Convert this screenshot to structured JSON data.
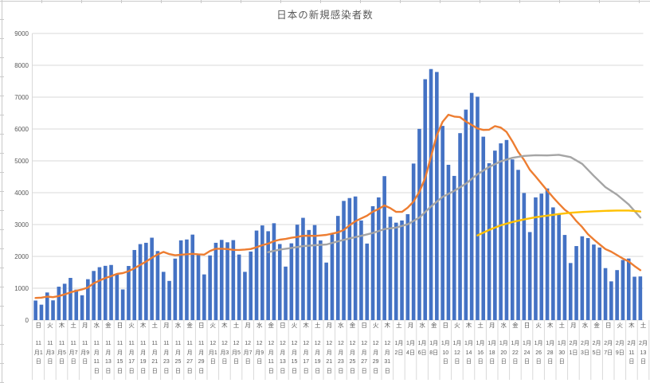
{
  "chart_data": {
    "type": "combo_bar_line",
    "title": "日本の新規感染者数",
    "xlabel": "",
    "ylabel": "",
    "ylim": [
      0,
      9000
    ],
    "y_ticks": [
      0,
      1000,
      2000,
      3000,
      4000,
      5000,
      6000,
      7000,
      8000,
      9000
    ],
    "grid": "horizontal",
    "legend": "none",
    "colors": {
      "bars": "#4472C4",
      "line_orange": "#ED7D31",
      "line_gray": "#A5A5A5",
      "line_yellow": "#FFC000",
      "gridline": "#D9D9D9",
      "axis_text": "#595959"
    },
    "x_labels": [
      {
        "dow": "日",
        "date": "11月1日"
      },
      {
        "dow": "火",
        "date": "11月3日"
      },
      {
        "dow": "木",
        "date": "11月5日"
      },
      {
        "dow": "土",
        "date": "11月7日"
      },
      {
        "dow": "月",
        "date": "11月9日"
      },
      {
        "dow": "水",
        "date": "11月11日"
      },
      {
        "dow": "金",
        "date": "11月13日"
      },
      {
        "dow": "日",
        "date": "11月15日"
      },
      {
        "dow": "火",
        "date": "11月17日"
      },
      {
        "dow": "木",
        "date": "11月19日"
      },
      {
        "dow": "土",
        "date": "11月21日"
      },
      {
        "dow": "月",
        "date": "11月23日"
      },
      {
        "dow": "水",
        "date": "11月25日"
      },
      {
        "dow": "金",
        "date": "11月27日"
      },
      {
        "dow": "日",
        "date": "11月29日"
      },
      {
        "dow": "火",
        "date": "12月1日"
      },
      {
        "dow": "木",
        "date": "12月3日"
      },
      {
        "dow": "土",
        "date": "12月5日"
      },
      {
        "dow": "月",
        "date": "12月7日"
      },
      {
        "dow": "水",
        "date": "12月9日"
      },
      {
        "dow": "金",
        "date": "12月11日"
      },
      {
        "dow": "日",
        "date": "12月13日"
      },
      {
        "dow": "火",
        "date": "12月15日"
      },
      {
        "dow": "木",
        "date": "12月17日"
      },
      {
        "dow": "土",
        "date": "12月19日"
      },
      {
        "dow": "月",
        "date": "12月21日"
      },
      {
        "dow": "水",
        "date": "12月23日"
      },
      {
        "dow": "金",
        "date": "12月25日"
      },
      {
        "dow": "日",
        "date": "12月27日"
      },
      {
        "dow": "火",
        "date": "12月29日"
      },
      {
        "dow": "木",
        "date": "12月31日"
      },
      {
        "dow": "土",
        "date": "1月2日"
      },
      {
        "dow": "月",
        "date": "1月4日"
      },
      {
        "dow": "水",
        "date": "1月6日"
      },
      {
        "dow": "金",
        "date": "1月8日"
      },
      {
        "dow": "日",
        "date": "1月10日"
      },
      {
        "dow": "火",
        "date": "1月12日"
      },
      {
        "dow": "木",
        "date": "1月14日"
      },
      {
        "dow": "土",
        "date": "1月16日"
      },
      {
        "dow": "月",
        "date": "1月18日"
      },
      {
        "dow": "水",
        "date": "1月20日"
      },
      {
        "dow": "金",
        "date": "1月22日"
      },
      {
        "dow": "日",
        "date": "1月24日"
      },
      {
        "dow": "火",
        "date": "1月26日"
      },
      {
        "dow": "木",
        "date": "1月28日"
      },
      {
        "dow": "土",
        "date": "1月30日"
      },
      {
        "dow": "月",
        "date": "2月1日"
      },
      {
        "dow": "水",
        "date": "2月3日"
      },
      {
        "dow": "金",
        "date": "2月5日"
      },
      {
        "dow": "日",
        "date": "2月7日"
      },
      {
        "dow": "火",
        "date": "2月9日"
      },
      {
        "dow": "木",
        "date": "2月11日"
      },
      {
        "dow": "土",
        "date": "2月13日"
      }
    ],
    "bars": {
      "first_date": "11月1日",
      "last_date": "2月13日",
      "values": [
        614,
        484,
        867,
        620,
        1049,
        1141,
        1325,
        957,
        780,
        1284,
        1543,
        1661,
        1704,
        1731,
        1440,
        962,
        1699,
        2201,
        2386,
        2427,
        2587,
        2168,
        1515,
        1230,
        1931,
        2504,
        2531,
        2684,
        2066,
        1434,
        2030,
        2427,
        2518,
        2442,
        2511,
        2058,
        1515,
        2152,
        2811,
        2972,
        2790,
        3041,
        2388,
        1680,
        2410,
        2995,
        3211,
        2829,
        2983,
        2501,
        1806,
        2688,
        3271,
        3742,
        3832,
        3881,
        3127,
        2403,
        3576,
        3852,
        4520,
        3246,
        3059,
        3127,
        3325,
        4915,
        6004,
        7563,
        7882,
        7790,
        6097,
        4876,
        4527,
        5870,
        6609,
        7133,
        7014,
        5759,
        4925,
        5321,
        5549,
        5655,
        5045,
        4717,
        3990,
        2764,
        3853,
        3971,
        4133,
        3539,
        3344,
        2673,
        1792,
        2324,
        2631,
        2576,
        2372,
        2279,
        1632,
        1216,
        1570,
        1887,
        1933,
        1362,
        1371
      ]
    },
    "lines": [
      {
        "id": "line-orange-7day-average",
        "color": "#ED7D31",
        "start_day": 1,
        "values": [
          695,
          705,
          737,
          721,
          755,
          807,
          871,
          920,
          963,
          1022,
          1154,
          1242,
          1322,
          1380,
          1449,
          1475,
          1534,
          1628,
          1732,
          1835,
          1957,
          2061,
          2140,
          2073,
          2035,
          2052,
          2067,
          2080,
          2066,
          2054,
          2169,
          2239,
          2241,
          2229,
          2204,
          2203,
          2214,
          2232,
          2287,
          2352,
          2401,
          2477,
          2524,
          2548,
          2585,
          2611,
          2645,
          2651,
          2642,
          2658,
          2676,
          2716,
          2756,
          2831,
          2975,
          3103,
          3192,
          3278,
          3405,
          3488,
          3599,
          3515,
          3398,
          3398,
          3529,
          3721,
          4028,
          4463,
          5125,
          5801,
          6225,
          6447,
          6391,
          6372,
          6236,
          6129,
          6018,
          5970,
          5977,
          6090,
          6044,
          5908,
          5610,
          5282,
          5029,
          4720,
          4510,
          4285,
          4068,
          3852,
          3656,
          3468,
          3329,
          3111,
          2919,
          2697,
          2530,
          2378,
          2229,
          2147,
          2039,
          1933,
          1841,
          1697,
          1567
        ]
      },
      {
        "id": "line-gray-28day-average",
        "color": "#A5A5A5",
        "points": [
          [
            41,
            2133
          ],
          [
            43,
            2214
          ],
          [
            45,
            2265
          ],
          [
            47,
            2322
          ],
          [
            49,
            2351
          ],
          [
            51,
            2373
          ],
          [
            53,
            2473
          ],
          [
            55,
            2564
          ],
          [
            57,
            2644
          ],
          [
            59,
            2734
          ],
          [
            61,
            2857
          ],
          [
            63,
            2905
          ],
          [
            65,
            3008
          ],
          [
            67,
            3221
          ],
          [
            69,
            3566
          ],
          [
            71,
            3868
          ],
          [
            73,
            4058
          ],
          [
            75,
            4282
          ],
          [
            77,
            4580
          ],
          [
            79,
            4808
          ],
          [
            81,
            4983
          ],
          [
            83,
            5095
          ],
          [
            85,
            5155
          ],
          [
            87,
            5178
          ],
          [
            89,
            5169
          ],
          [
            91,
            5189
          ],
          [
            93,
            5118
          ],
          [
            95,
            4905
          ],
          [
            97,
            4530
          ],
          [
            99,
            4174
          ],
          [
            101,
            3938
          ],
          [
            103,
            3629
          ],
          [
            105,
            3221
          ]
        ]
      },
      {
        "id": "line-yellow-trend",
        "color": "#FFC000",
        "points": [
          [
            77,
            2660
          ],
          [
            79,
            2830
          ],
          [
            81,
            2975
          ],
          [
            83,
            3080
          ],
          [
            85,
            3160
          ],
          [
            87,
            3230
          ],
          [
            89,
            3280
          ],
          [
            91,
            3330
          ],
          [
            93,
            3370
          ],
          [
            95,
            3395
          ],
          [
            97,
            3415
          ],
          [
            99,
            3430
          ],
          [
            101,
            3440
          ],
          [
            103,
            3440
          ],
          [
            105,
            3410
          ]
        ]
      }
    ]
  }
}
